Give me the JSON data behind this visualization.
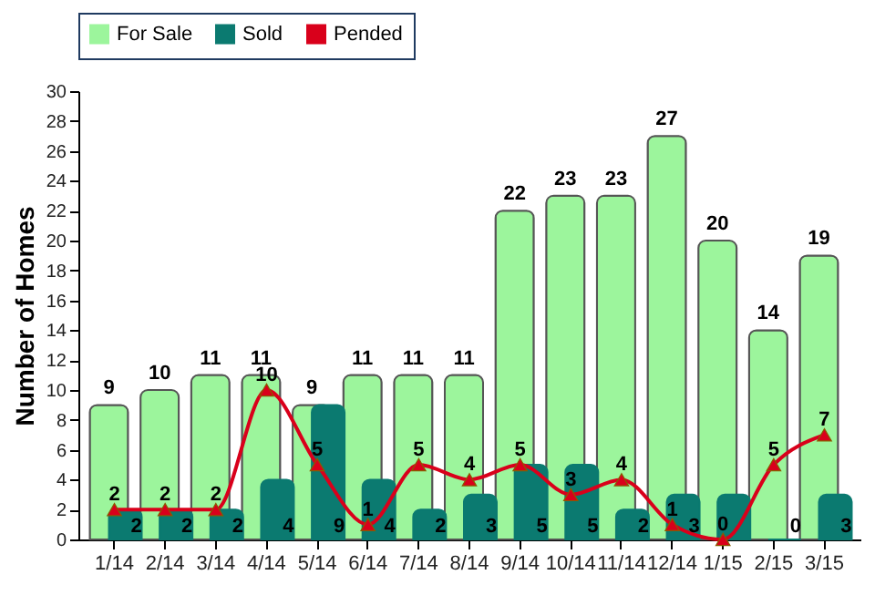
{
  "chart_data": {
    "type": "bar",
    "ylabel": "Number of Homes",
    "categories": [
      "1/14",
      "2/14",
      "3/14",
      "4/14",
      "5/14",
      "6/14",
      "7/14",
      "8/14",
      "9/14",
      "10/14",
      "11/14",
      "12/14",
      "1/15",
      "2/15",
      "3/15"
    ],
    "series": [
      {
        "name": "For Sale",
        "color": "#9cf59c",
        "values": [
          9,
          10,
          11,
          11,
          9,
          11,
          11,
          11,
          22,
          23,
          23,
          27,
          20,
          14,
          19
        ]
      },
      {
        "name": "Sold",
        "color": "#0b7a70",
        "values": [
          2,
          2,
          2,
          4,
          9,
          4,
          2,
          3,
          5,
          5,
          2,
          3,
          3,
          0,
          3
        ],
        "value_labels": [
          "2",
          "2",
          "2",
          "4",
          "9",
          "4",
          "2",
          "3",
          "5",
          "5",
          "2",
          "3",
          null,
          "0",
          "3"
        ]
      },
      {
        "name": "Pended",
        "type": "line",
        "color": "#d9001b",
        "marker": "triangle",
        "values": [
          2,
          2,
          2,
          10,
          5,
          1,
          5,
          4,
          5,
          3,
          4,
          1,
          0,
          5,
          7
        ]
      }
    ],
    "ylim": [
      0,
      30
    ],
    "yticks": [
      0,
      2,
      4,
      6,
      8,
      10,
      12,
      14,
      16,
      18,
      20,
      22,
      24,
      26,
      28,
      30
    ],
    "grid": false,
    "legend": "top",
    "data_labels": true
  }
}
